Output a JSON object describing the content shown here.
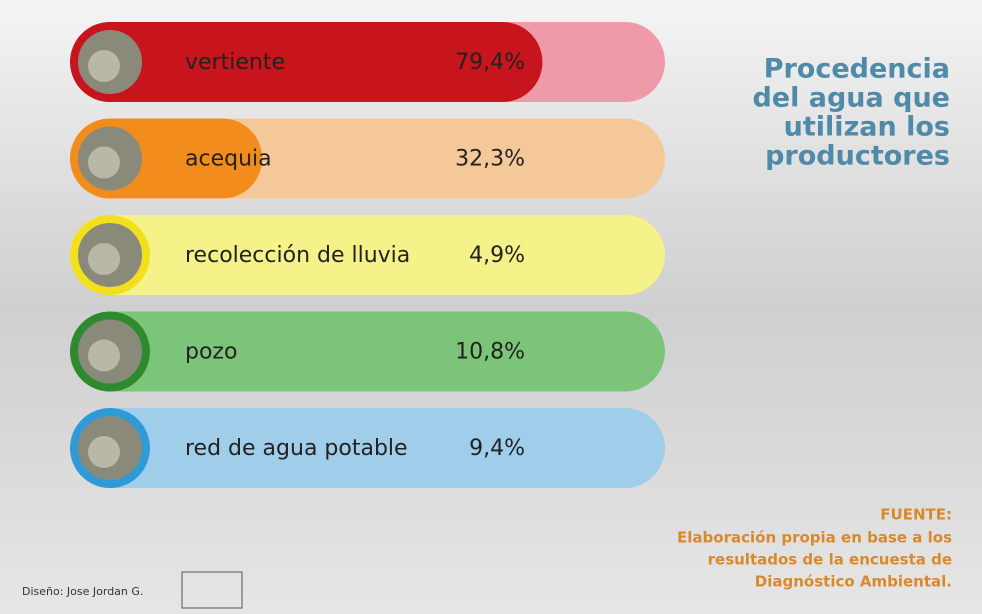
{
  "chart_data": {
    "type": "bar",
    "categories": [
      "vertiente",
      "acequia",
      "recolección de lluvia",
      "pozo",
      "red de agua potable"
    ],
    "values": [
      79.4,
      32.3,
      4.9,
      10.8,
      9.4
    ],
    "value_labels": [
      "79,4%",
      "32,3%",
      "4,9%",
      "10,8%",
      "9,4%"
    ],
    "colors": [
      "#c8141c",
      "#f28c1c",
      "#f2e01c",
      "#2e8a2e",
      "#2e9ad8"
    ],
    "track_colors": [
      "#ef9aa8",
      "#f5c89a",
      "#f6f28a",
      "#7cc47a",
      "#9fcdea"
    ],
    "xlim": [
      0,
      100
    ],
    "title": [
      "Procedencia",
      "del agua que",
      "utilizan los",
      "productores"
    ],
    "source_heading": "FUENTE:",
    "source": [
      "Elaboración propia en base a los",
      "resultados de la encuesta de",
      "Diagnóstico Ambiental."
    ],
    "credit": "Diseño: Jose Jordan G."
  }
}
